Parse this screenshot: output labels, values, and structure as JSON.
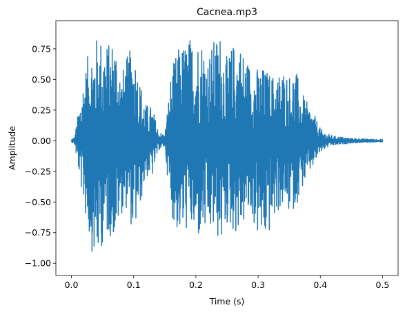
{
  "chart_data": {
    "type": "line",
    "title": "Cacnea.mp3",
    "xlabel": "Time (s)",
    "ylabel": "Amplitude",
    "xlim": [
      -0.025,
      0.525
    ],
    "ylim": [
      -1.1,
      0.98
    ],
    "xticks": [
      0.0,
      0.1,
      0.2,
      0.3,
      0.4,
      0.5
    ],
    "xtick_labels": [
      "0.0",
      "0.1",
      "0.2",
      "0.3",
      "0.4",
      "0.5"
    ],
    "yticks": [
      -1.0,
      -0.75,
      -0.5,
      -0.25,
      0.0,
      0.25,
      0.5,
      0.75
    ],
    "ytick_labels": [
      "−1.00",
      "−0.75",
      "−0.50",
      "−0.25",
      "0.00",
      "0.25",
      "0.50",
      "0.75"
    ],
    "grid": false,
    "duration": 0.5,
    "series": [
      {
        "color": "#1f77b4",
        "envelope": {
          "t": [
            0.0,
            0.005,
            0.01,
            0.02,
            0.03,
            0.04,
            0.05,
            0.06,
            0.07,
            0.08,
            0.09,
            0.1,
            0.11,
            0.12,
            0.13,
            0.14,
            0.15,
            0.16,
            0.17,
            0.18,
            0.19,
            0.2,
            0.21,
            0.22,
            0.23,
            0.24,
            0.25,
            0.26,
            0.27,
            0.28,
            0.29,
            0.3,
            0.31,
            0.32,
            0.33,
            0.34,
            0.35,
            0.36,
            0.37,
            0.38,
            0.39,
            0.4,
            0.41,
            0.42,
            0.45,
            0.5
          ],
          "max": [
            0.01,
            0.03,
            0.2,
            0.55,
            0.78,
            0.85,
            0.86,
            0.8,
            0.88,
            0.55,
            0.7,
            0.8,
            0.5,
            0.3,
            0.28,
            0.08,
            0.05,
            0.55,
            0.75,
            0.8,
            0.85,
            0.85,
            0.85,
            0.72,
            0.84,
            0.9,
            0.68,
            0.8,
            0.82,
            0.7,
            0.62,
            0.6,
            0.6,
            0.55,
            0.55,
            0.6,
            0.55,
            0.6,
            0.4,
            0.3,
            0.22,
            0.1,
            0.06,
            0.04,
            0.02,
            0.01
          ],
          "min": [
            -0.01,
            -0.03,
            -0.2,
            -0.55,
            -0.85,
            -1.03,
            -0.85,
            -0.78,
            -0.8,
            -0.6,
            -0.55,
            -0.8,
            -0.55,
            -0.3,
            -0.3,
            -0.08,
            -0.05,
            -0.6,
            -0.75,
            -0.78,
            -0.7,
            -0.85,
            -0.78,
            -0.8,
            -0.75,
            -0.88,
            -0.7,
            -0.75,
            -0.78,
            -0.65,
            -0.65,
            -0.8,
            -0.85,
            -0.75,
            -0.6,
            -0.55,
            -0.6,
            -0.55,
            -0.4,
            -0.3,
            -0.2,
            -0.1,
            -0.06,
            -0.04,
            -0.02,
            -0.01
          ]
        }
      }
    ]
  }
}
